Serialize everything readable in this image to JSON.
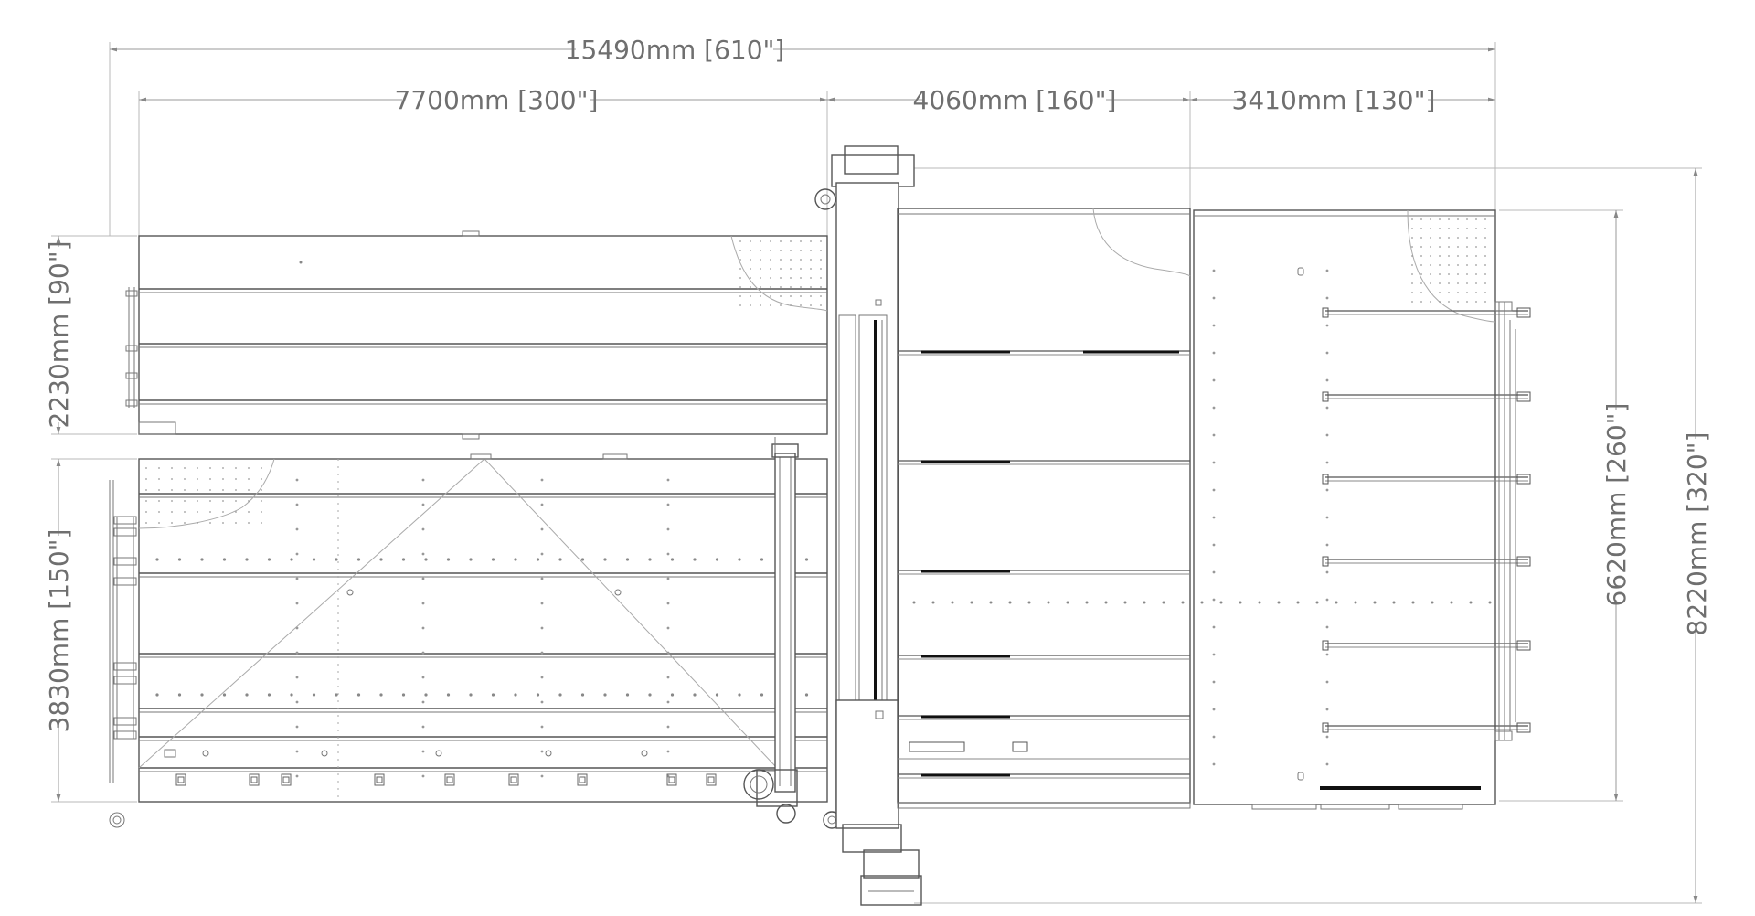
{
  "dimensions": {
    "overall_width": "15490mm [610\"]",
    "left_section_width": "7700mm [300\"]",
    "middle_section_width": "4060mm [160\"]",
    "right_section_width": "3410mm [130\"]",
    "upper_table_height": "2230mm [90\"]",
    "lower_table_height": "3830mm [150\"]",
    "right_table_height": "6620mm [260\"]",
    "overall_height": "8220mm [320\"]"
  }
}
